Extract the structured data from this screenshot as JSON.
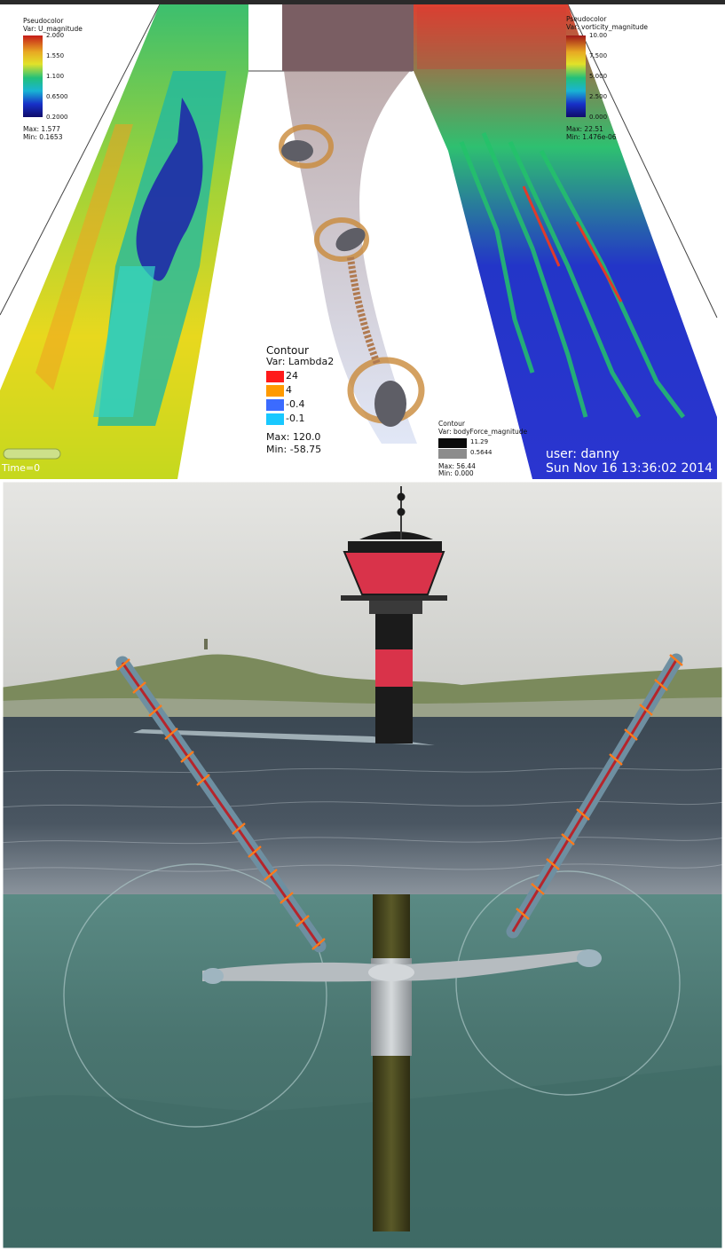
{
  "viz": {
    "legend_u": {
      "line1": "Pseudocolor",
      "line2": "Var: U_magnitude",
      "ticks": [
        "2.000",
        "1.550",
        "1.100",
        "0.6500",
        "0.2000"
      ],
      "max": "Max:  1.577",
      "min": "Min:  0.1653"
    },
    "legend_vorticity": {
      "line1": "Pseudocolor",
      "line2": "Var: vorticity_magnitude",
      "ticks": [
        "10.00",
        "7.500",
        "5.000",
        "2.500",
        "0.000"
      ],
      "max": "Max:  22.51",
      "min": "Min:  1.476e-06"
    },
    "legend_lambda": {
      "line1": "Contour",
      "line2": "Var: Lambda2",
      "levels": [
        {
          "label": "24",
          "color": "#ff1a1a"
        },
        {
          "label": "4",
          "color": "#ff9a00"
        },
        {
          "label": "-0.4",
          "color": "#3b6bff"
        },
        {
          "label": "-0.1",
          "color": "#19c8ff"
        }
      ],
      "max": "Max:  120.0",
      "min": "Min:  -58.75"
    },
    "legend_bodyforce": {
      "line1": "Contour",
      "line2": "Var: bodyForce_magnitude",
      "levels": [
        {
          "label": "11.29",
          "color": "#0a0a0a"
        },
        {
          "label": "0.5644",
          "color": "#8c8c8c"
        }
      ],
      "max": "Max:  56.44",
      "min": "Min:  0.000"
    },
    "time": "Time=0",
    "user": "user: danny",
    "timestamp": "Sun Nov 16 13:36:02 2014"
  },
  "colors": {
    "tower_red": "#d9334a",
    "tower_black": "#1a1a1a",
    "sea_surface": "#3c4a55",
    "underwater": "#4d7670",
    "pole": "#4b4a22",
    "blade_marker": "#ff7a1a"
  }
}
